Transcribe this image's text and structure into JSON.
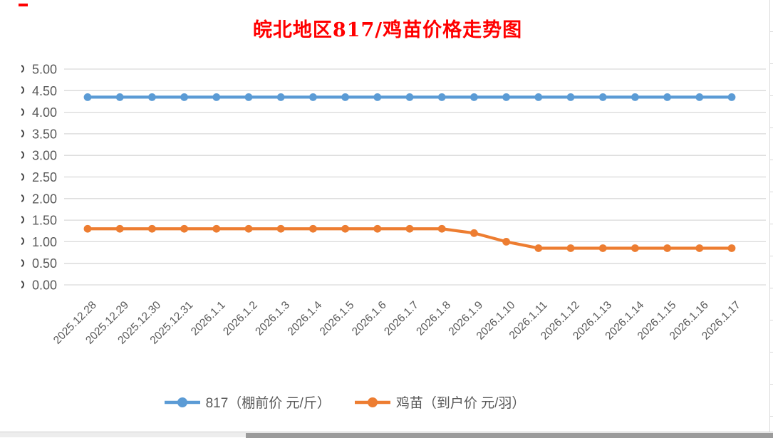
{
  "chart_data": {
    "type": "line",
    "title": "皖北地区817/鸡苗价格走势图",
    "title_color": "#FF0000",
    "categories": [
      "2025.12.28",
      "2025.12.29",
      "2025.12.30",
      "2025.12.31",
      "2026.1.1",
      "2026.1.2",
      "2026.1.3",
      "2026.1.4",
      "2026.1.5",
      "2026.1.6",
      "2026.1.7",
      "2026.1.8",
      "2026.1.9",
      "2026.1.10",
      "2026.1.11",
      "2026.1.12",
      "2026.1.13",
      "2026.1.14",
      "2026.1.15",
      "2026.1.16",
      "2026.1.17"
    ],
    "series": [
      {
        "name": "817（棚前价 元/斤）",
        "color": "#5B9BD5",
        "values": [
          4.35,
          4.35,
          4.35,
          4.35,
          4.35,
          4.35,
          4.35,
          4.35,
          4.35,
          4.35,
          4.35,
          4.35,
          4.35,
          4.35,
          4.35,
          4.35,
          4.35,
          4.35,
          4.35,
          4.35,
          4.35
        ]
      },
      {
        "name": "鸡苗（到户价 元/羽）",
        "color": "#ED7D31",
        "values": [
          1.3,
          1.3,
          1.3,
          1.3,
          1.3,
          1.3,
          1.3,
          1.3,
          1.3,
          1.3,
          1.3,
          1.3,
          1.2,
          1.0,
          0.85,
          0.85,
          0.85,
          0.85,
          0.85,
          0.85,
          0.85
        ]
      }
    ],
    "ylim": [
      0,
      5
    ],
    "ytick_step": 0.5,
    "y_tick_labels": [
      "0.00",
      "0.50",
      "1.00",
      "1.50",
      "2.00",
      "2.50",
      "3.00",
      "3.50",
      "4.00",
      "4.50",
      "5.00"
    ],
    "grid": true,
    "gridline_color": "#D9D9D9",
    "axis_label_color": "#595959",
    "legend_position": "bottom",
    "x_label_rotation": 45
  }
}
